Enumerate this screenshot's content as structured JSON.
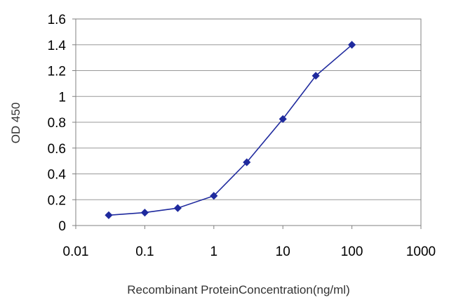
{
  "chart_data": {
    "type": "line",
    "title": "",
    "xlabel": "Recombinant ProteinConcentration(ng/ml)",
    "ylabel": "OD 450",
    "x_scale": "log",
    "xlim": [
      0.01,
      1000
    ],
    "ylim": [
      0,
      1.6
    ],
    "x_ticks": [
      0.01,
      0.1,
      1,
      10,
      100,
      1000
    ],
    "x_tick_labels": [
      "0.01",
      "0.1",
      "1",
      "10",
      "100",
      "1000"
    ],
    "y_ticks": [
      0,
      0.2,
      0.4,
      0.6,
      0.8,
      1,
      1.2,
      1.4,
      1.6
    ],
    "y_tick_labels": [
      "0",
      "0.2",
      "0.4",
      "0.6",
      "0.8",
      "1",
      "1.2",
      "1.4",
      "1.6"
    ],
    "grid": "horizontal",
    "legend": "none",
    "series": [
      {
        "color": "#1f2a9e",
        "marker": "diamond",
        "x": [
          0.03,
          0.1,
          0.3,
          1,
          3,
          10,
          30,
          100
        ],
        "y": [
          0.08,
          0.1,
          0.135,
          0.23,
          0.49,
          0.825,
          1.16,
          1.4
        ]
      }
    ]
  }
}
